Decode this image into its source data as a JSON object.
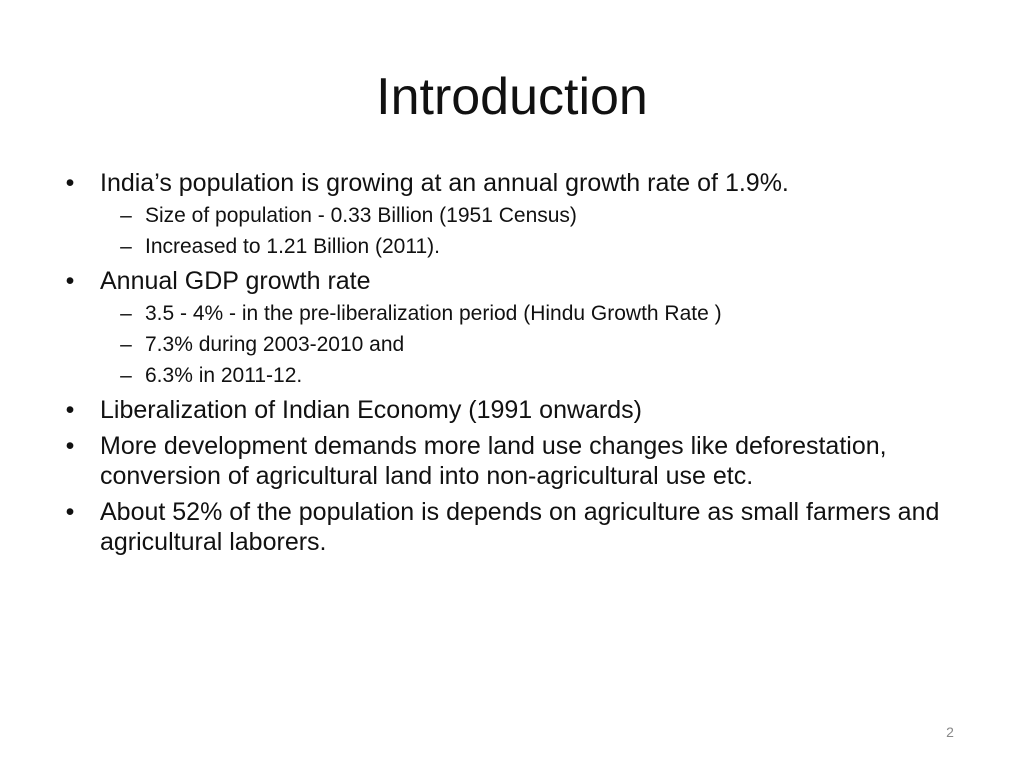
{
  "slide": {
    "title": "Introduction",
    "page_number": "2",
    "bullet_glyph": "•",
    "sub_bullet_glyph": "–",
    "bullets": [
      {
        "text": "India’s population is growing at an annual growth rate of 1.9%.",
        "sub": [
          "Size of population  - 0.33 Billion (1951 Census)",
          "Increased to 1.21 Billion (2011)."
        ]
      },
      {
        "text": "Annual GDP growth rate",
        "sub": [
          "3.5 - 4%  - in the pre-liberalization period (Hindu Growth Rate )",
          "7.3% during 2003-2010 and",
          "6.3% in 2011-12."
        ]
      },
      {
        "text": "Liberalization of Indian Economy (1991 onwards)",
        "sub": []
      },
      {
        "text": "More development demands more land use changes like deforestation, conversion of agricultural land into non-agricultural use etc.",
        "sub": []
      },
      {
        "text": "About 52% of the population is depends on agriculture as small farmers and agricultural laborers.",
        "sub": []
      }
    ]
  }
}
